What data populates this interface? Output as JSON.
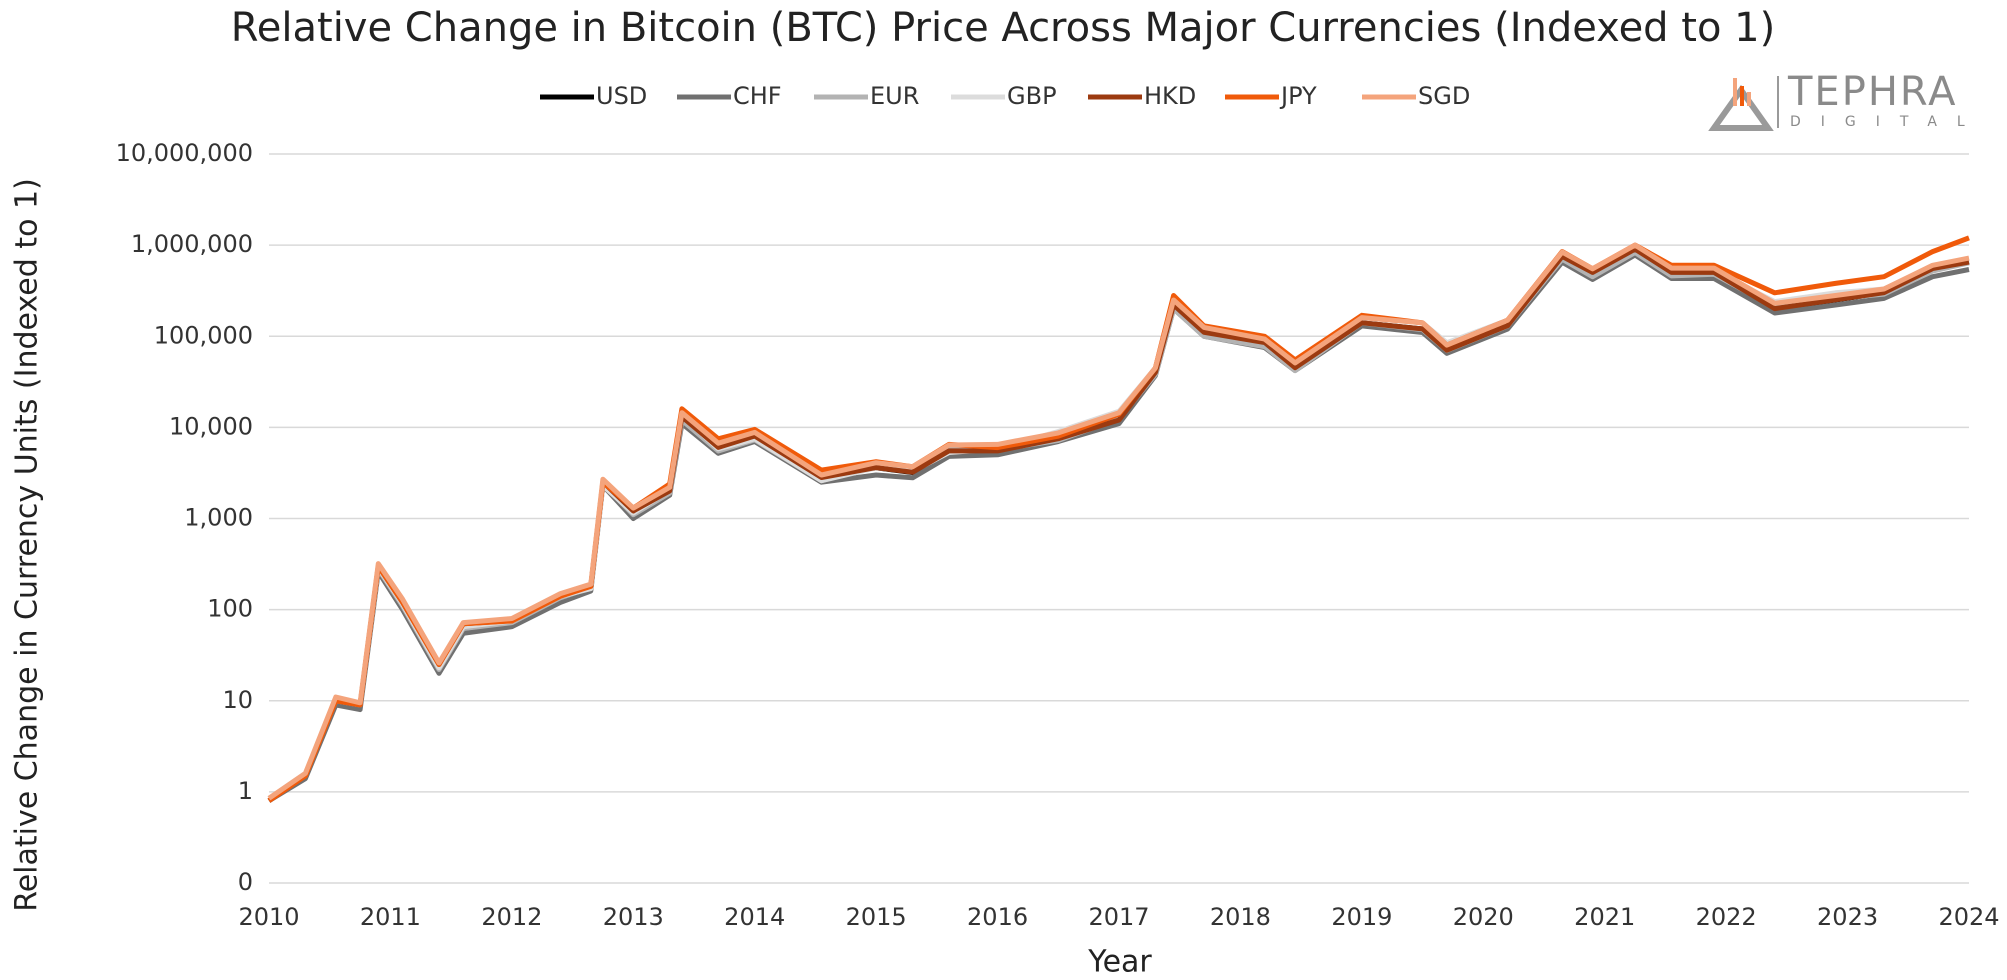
{
  "chart_data": {
    "type": "line",
    "title": "Relative Change in Bitcoin (BTC) Price Across Major Currencies (Indexed to 1)",
    "x_label": "Year",
    "y_label": "Relative Change in Currency Units (Indexed to 1)",
    "brand": {
      "name": "TEPHRA",
      "tagline": "DIGITAL"
    },
    "log_scale": true,
    "grid": true,
    "legend_position": "top",
    "xlim": [
      2010,
      2024
    ],
    "xticks": [
      2010,
      2011,
      2012,
      2013,
      2014,
      2015,
      2016,
      2017,
      2018,
      2019,
      2020,
      2021,
      2022,
      2023,
      2024
    ],
    "ylim": [
      0.1,
      10000000
    ],
    "yticks": [
      {
        "value": 0.1,
        "label": "0"
      },
      1,
      10,
      100,
      {
        "value": 1000,
        "label": "1,000"
      },
      {
        "value": 10000,
        "label": "10,000"
      },
      {
        "value": 100000,
        "label": "100,000"
      },
      {
        "value": 1000000,
        "label": "1,000,000"
      },
      {
        "value": 10000000,
        "label": "10,000,000"
      }
    ],
    "x": [
      2010.0,
      2010.3,
      2010.55,
      2010.75,
      2010.9,
      2011.1,
      2011.4,
      2011.6,
      2012.0,
      2012.4,
      2012.65,
      2012.75,
      2013.0,
      2013.3,
      2013.4,
      2013.7,
      2014.0,
      2014.55,
      2015.0,
      2015.3,
      2015.6,
      2016.0,
      2016.5,
      2017.0,
      2017.3,
      2017.45,
      2017.7,
      2018.2,
      2018.45,
      2019.0,
      2019.5,
      2019.7,
      2020.2,
      2020.65,
      2020.9,
      2021.25,
      2021.55,
      2021.9,
      2022.4,
      2022.9,
      2023.3,
      2023.7,
      2024.0
    ],
    "series": [
      {
        "name": "USD",
        "color": "#000000",
        "values": [
          0.8,
          1.5,
          10,
          9,
          300,
          120,
          25,
          70,
          75,
          140,
          180,
          2500,
          1200,
          2000,
          13000,
          6000,
          8000,
          2800,
          3600,
          3200,
          5500,
          5500,
          7500,
          12000,
          40000,
          220000,
          110000,
          85000,
          45000,
          140000,
          120000,
          70000,
          130000,
          750000,
          500000,
          900000,
          500000,
          500000,
          200000,
          250000,
          300000,
          550000,
          650000
        ]
      },
      {
        "name": "CHF",
        "color": "#707070",
        "values": [
          0.8,
          1.4,
          9,
          8,
          260,
          100,
          20,
          55,
          65,
          120,
          160,
          2300,
          1000,
          1800,
          11000,
          5200,
          7000,
          2500,
          3000,
          2800,
          4800,
          5000,
          7000,
          11000,
          37000,
          200000,
          100000,
          75000,
          42000,
          130000,
          110000,
          65000,
          120000,
          650000,
          420000,
          780000,
          430000,
          430000,
          180000,
          220000,
          260000,
          450000,
          540000
        ]
      },
      {
        "name": "EUR",
        "color": "#b3b3b3",
        "values": [
          0.8,
          1.5,
          10,
          9,
          280,
          110,
          22,
          62,
          72,
          135,
          175,
          2400,
          1100,
          1900,
          12000,
          5500,
          7300,
          2600,
          4000,
          3400,
          5800,
          5700,
          7200,
          12500,
          38000,
          200000,
          100000,
          77000,
          42000,
          140000,
          118000,
          70000,
          130000,
          700000,
          450000,
          830000,
          460000,
          480000,
          210000,
          260000,
          290000,
          520000,
          640000
        ]
      },
      {
        "name": "GBP",
        "color": "#dcdcdc",
        "values": [
          0.85,
          1.6,
          10,
          9,
          290,
          115,
          23,
          65,
          75,
          140,
          170,
          2300,
          1150,
          2050,
          13500,
          5800,
          7500,
          2600,
          3600,
          3300,
          5300,
          5800,
          9000,
          15000,
          45000,
          250000,
          125000,
          87000,
          48000,
          160000,
          140000,
          85000,
          150000,
          850000,
          540000,
          930000,
          520000,
          520000,
          240000,
          300000,
          330000,
          580000,
          700000
        ]
      },
      {
        "name": "HKD",
        "color": "#9c3a10",
        "values": [
          0.8,
          1.5,
          10,
          9,
          300,
          120,
          25,
          70,
          76,
          142,
          182,
          2520,
          1210,
          2010,
          13100,
          6050,
          8050,
          2820,
          3620,
          3220,
          5520,
          5520,
          7520,
          12050,
          40100,
          221000,
          110500,
          85300,
          45200,
          140500,
          120500,
          70300,
          130500,
          752000,
          502000,
          905000,
          502000,
          502000,
          201000,
          251000,
          301000,
          552000,
          652000
        ]
      },
      {
        "name": "JPY",
        "color": "#f05a0a",
        "values": [
          0.8,
          1.5,
          10,
          9,
          300,
          120,
          25,
          70,
          75,
          140,
          180,
          2500,
          1300,
          2400,
          16000,
          7500,
          9500,
          3400,
          4200,
          3700,
          6500,
          6000,
          8000,
          14000,
          45000,
          280000,
          130000,
          100000,
          55000,
          170000,
          140000,
          80000,
          150000,
          850000,
          550000,
          1000000,
          600000,
          600000,
          300000,
          380000,
          450000,
          850000,
          1200000
        ]
      },
      {
        "name": "SGD",
        "color": "#f4a47c",
        "values": [
          0.85,
          1.6,
          11,
          9.5,
          320,
          130,
          26,
          72,
          80,
          150,
          190,
          2700,
          1300,
          2200,
          14500,
          6700,
          8800,
          3000,
          4100,
          3700,
          6400,
          6500,
          8700,
          14500,
          45000,
          250000,
          125000,
          93000,
          51000,
          160000,
          140000,
          80000,
          150000,
          840000,
          550000,
          1000000,
          560000,
          560000,
          230000,
          280000,
          330000,
          600000,
          720000
        ]
      }
    ]
  }
}
